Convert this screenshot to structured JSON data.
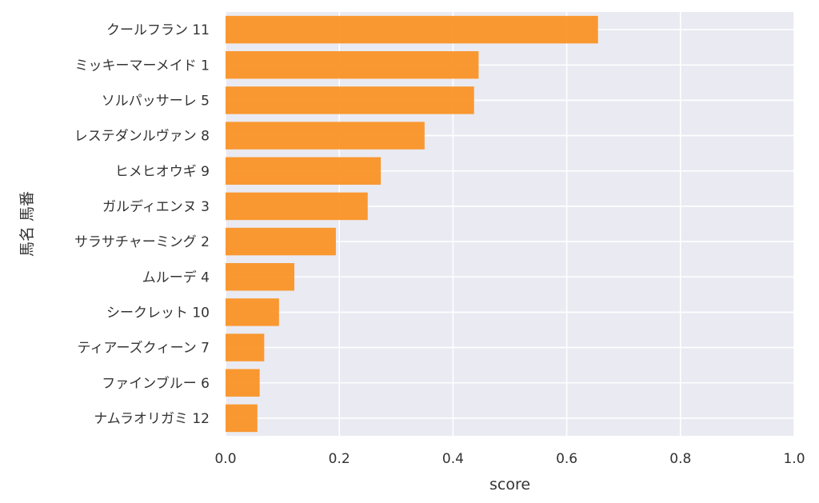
{
  "chart_data": {
    "type": "bar",
    "orientation": "horizontal",
    "categories": [
      "クールフラン 11",
      "ミッキーマーメイド 1",
      "ソルパッサーレ 5",
      "レステダンルヴァン 8",
      "ヒメヒオウギ 9",
      "ガルディエンヌ 3",
      "サラサチャーミング 2",
      "ムルーデ 4",
      "シークレット 10",
      "ティアーズクィーン 7",
      "ファインブルー 6",
      "ナムラオリガミ 12"
    ],
    "values": [
      0.655,
      0.445,
      0.437,
      0.35,
      0.273,
      0.25,
      0.194,
      0.121,
      0.094,
      0.068,
      0.06,
      0.056
    ],
    "xlabel": "score",
    "ylabel": "馬名 馬番",
    "xlim": [
      0.0,
      1.0
    ],
    "xticks": [
      "0.0",
      "0.2",
      "0.4",
      "0.6",
      "0.8",
      "1.0"
    ],
    "grid": true,
    "colors": {
      "bar": "#fa9426",
      "plot_background": "#eaeaf2",
      "grid": "#ffffff"
    }
  }
}
